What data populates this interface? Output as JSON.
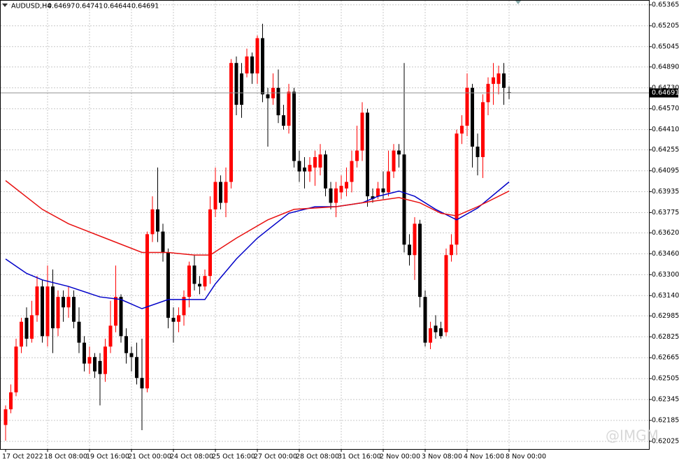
{
  "chart_data": {
    "type": "candlestick",
    "title": "AUDUSD,H4",
    "x": [
      "17 Oct 2022",
      null,
      null,
      null,
      null,
      null,
      null,
      null,
      "18 Oct 08:00",
      null,
      null,
      null,
      null,
      null,
      null,
      null,
      "19 Oct 16:00",
      null,
      null,
      null,
      null,
      null,
      null,
      null,
      "21 Oct 00:00",
      null,
      null,
      null,
      null,
      null,
      null,
      null,
      "24 Oct 08:00",
      null,
      null,
      null,
      null,
      null,
      null,
      null,
      "25 Oct 16:00",
      null,
      null,
      null,
      null,
      null,
      null,
      null,
      "27 Oct 00:00",
      null,
      null,
      null,
      null,
      null,
      null,
      null,
      "28 Oct 08:00",
      null,
      null,
      null,
      null,
      null,
      null,
      null,
      "31 Oct 16:00",
      null,
      null,
      null,
      null,
      null,
      null,
      null,
      "2 Nov 00:00",
      null,
      null,
      null,
      null,
      null,
      null,
      null,
      "3 Nov 08:00",
      null,
      null,
      null,
      null,
      null,
      null,
      null,
      "4 Nov 16:00",
      null,
      null,
      null,
      null,
      null,
      null,
      null,
      "8 Nov 00:00"
    ],
    "open": [
      0.6215,
      0.6227,
      0.624,
      0.6275,
      0.6297,
      0.6281,
      0.6299,
      0.6321,
      0.6283,
      0.6321,
      0.6289,
      0.6313,
      0.6305,
      0.6313,
      0.6294,
      0.6278,
      0.6262,
      0.6267,
      0.6264,
      0.6254,
      0.6275,
      0.6291,
      0.6313,
      0.6283,
      0.627,
      0.6267,
      0.6251,
      0.6243,
      0.6361,
      0.638,
      0.6363,
      0.6347,
      0.6297,
      0.6294,
      0.6299,
      0.6313,
      0.6337,
      0.6323,
      0.6321,
      0.6329,
      0.638,
      0.6401,
      0.6385,
      0.6401,
      0.6492,
      0.6484,
      0.6484,
      0.6497,
      0.6484,
      0.6511,
      0.6468,
      0.6465,
      0.6473,
      0.6452,
      0.6444,
      0.647,
      0.6417,
      0.6412,
      0.6409,
      0.6412,
      0.6412,
      0.6422,
      0.6396,
      0.6385,
      0.6393,
      0.6396,
      0.6401,
      0.6417,
      0.6425,
      0.6454,
      0.639,
      0.639,
      0.6396,
      0.6393,
      0.6409,
      0.6425,
      0.6422,
      0.6353,
      0.6345,
      0.6369,
      0.6313,
      0.6278,
      0.6291,
      0.6289,
      0.6286,
      0.6345,
      0.6353,
      0.6438,
      0.6444,
      0.6473,
      0.6428,
      0.642,
      0.6462,
      0.6476,
      0.6476,
      0.6484,
      0.64697
    ],
    "high": [
      0.623,
      0.6246,
      0.6281,
      0.6297,
      0.6305,
      0.631,
      0.6329,
      0.6326,
      0.6337,
      0.6334,
      0.6318,
      0.6318,
      0.6321,
      0.6318,
      0.6305,
      0.6283,
      0.6275,
      0.627,
      0.627,
      0.6281,
      0.631,
      0.6337,
      0.6315,
      0.6289,
      0.6275,
      0.6278,
      0.6281,
      0.6363,
      0.639,
      0.6412,
      0.6369,
      0.635,
      0.6305,
      0.6305,
      0.6318,
      0.634,
      0.6345,
      0.6329,
      0.6334,
      0.639,
      0.6412,
      0.6406,
      0.6412,
      0.6495,
      0.6497,
      0.6492,
      0.6503,
      0.65,
      0.6513,
      0.6522,
      0.6473,
      0.6484,
      0.6487,
      0.646,
      0.6476,
      0.6473,
      0.6425,
      0.642,
      0.642,
      0.6425,
      0.643,
      0.6425,
      0.6401,
      0.6401,
      0.6406,
      0.6412,
      0.6425,
      0.6444,
      0.6462,
      0.6457,
      0.6396,
      0.6401,
      0.6409,
      0.6425,
      0.643,
      0.643,
      0.6492,
      0.6361,
      0.6374,
      0.6372,
      0.6318,
      0.6294,
      0.6299,
      0.6294,
      0.635,
      0.6361,
      0.6441,
      0.6452,
      0.6484,
      0.6476,
      0.6438,
      0.6468,
      0.6481,
      0.6492,
      0.649,
      0.6492,
      0.64741
    ],
    "low": [
      0.6203,
      0.6224,
      0.6237,
      0.627,
      0.6275,
      0.6278,
      0.6294,
      0.6278,
      0.6275,
      0.627,
      0.6283,
      0.6294,
      0.6297,
      0.6289,
      0.627,
      0.6256,
      0.6254,
      0.6251,
      0.623,
      0.6248,
      0.627,
      0.6286,
      0.6278,
      0.6262,
      0.6256,
      0.6246,
      0.6211,
      0.624,
      0.6355,
      0.6355,
      0.634,
      0.6289,
      0.6278,
      0.6286,
      0.6291,
      0.6305,
      0.6318,
      0.6315,
      0.6318,
      0.6323,
      0.6374,
      0.638,
      0.6374,
      0.6396,
      0.6452,
      0.645,
      0.6481,
      0.6476,
      0.6476,
      0.6462,
      0.6428,
      0.646,
      0.6446,
      0.6441,
      0.6438,
      0.6412,
      0.6401,
      0.6396,
      0.6401,
      0.6398,
      0.6406,
      0.639,
      0.638,
      0.6374,
      0.6388,
      0.639,
      0.6393,
      0.6412,
      0.6417,
      0.6382,
      0.6385,
      0.6388,
      0.6388,
      0.639,
      0.6404,
      0.6412,
      0.6347,
      0.6337,
      0.6326,
      0.6305,
      0.6275,
      0.6273,
      0.6281,
      0.6281,
      0.6283,
      0.634,
      0.6345,
      0.643,
      0.6436,
      0.6412,
      0.6406,
      0.6404,
      0.6452,
      0.646,
      0.6468,
      0.646,
      0.64644
    ],
    "close": [
      0.6227,
      0.624,
      0.6275,
      0.6294,
      0.6281,
      0.6299,
      0.6321,
      0.6283,
      0.6321,
      0.6289,
      0.6313,
      0.6305,
      0.6313,
      0.6294,
      0.6278,
      0.6262,
      0.6267,
      0.6256,
      0.6254,
      0.6275,
      0.6291,
      0.6313,
      0.6283,
      0.627,
      0.6267,
      0.6251,
      0.6243,
      0.6361,
      0.638,
      0.6363,
      0.6347,
      0.6297,
      0.6294,
      0.6299,
      0.6313,
      0.6337,
      0.6323,
      0.6321,
      0.6329,
      0.638,
      0.6401,
      0.6385,
      0.6401,
      0.6492,
      0.646,
      0.646,
      0.6497,
      0.6484,
      0.6511,
      0.6468,
      0.6465,
      0.6473,
      0.6452,
      0.6444,
      0.647,
      0.6417,
      0.6409,
      0.6409,
      0.6414,
      0.642,
      0.6422,
      0.6396,
      0.6385,
      0.6396,
      0.6398,
      0.6401,
      0.6417,
      0.6425,
      0.6454,
      0.639,
      0.6388,
      0.6396,
      0.6393,
      0.6409,
      0.6425,
      0.6422,
      0.6353,
      0.6345,
      0.6369,
      0.6313,
      0.6278,
      0.6289,
      0.6286,
      0.6283,
      0.6345,
      0.6353,
      0.6438,
      0.6444,
      0.6473,
      0.6428,
      0.642,
      0.6462,
      0.6476,
      0.6481,
      0.6484,
      0.6473,
      0.64691
    ],
    "up_color": "#ff0000",
    "down_color": "#000000",
    "overlays": [
      {
        "color": "#0000c8",
        "x": [
          0,
          4,
          7,
          12,
          18,
          22,
          26,
          31,
          38,
          40,
          44,
          48,
          54,
          59,
          63,
          68,
          71,
          75,
          78,
          82,
          86,
          90,
          96
        ],
        "values": [
          0.6342,
          0.6331,
          0.6326,
          0.6321,
          0.6313,
          0.6311,
          0.6304,
          0.6311,
          0.6311,
          0.6323,
          0.6342,
          0.6358,
          0.6377,
          0.6382,
          0.6382,
          0.6385,
          0.639,
          0.6394,
          0.639,
          0.638,
          0.6372,
          0.6381,
          0.6401
        ]
      },
      {
        "color": "#e81010",
        "x": [
          0,
          7,
          12,
          19,
          26,
          31,
          36,
          39,
          44,
          50,
          55,
          63,
          68,
          75,
          79,
          83,
          86,
          90,
          96
        ],
        "values": [
          0.6402,
          0.638,
          0.6369,
          0.6358,
          0.6347,
          0.6347,
          0.6345,
          0.6345,
          0.6358,
          0.6372,
          0.638,
          0.6382,
          0.6385,
          0.6389,
          0.6385,
          0.6377,
          0.6375,
          0.6382,
          0.6394
        ]
      }
    ],
    "ylim": [
      0.61966,
      0.65402
    ],
    "yticks": [
      0.65365,
      0.65205,
      0.65045,
      {
        "value": 0.6489,
        "label": "0.64890"
      },
      {
        "value": 0.6473,
        "label": "0.64730"
      },
      {
        "value": 0.6457,
        "label": "0.64570"
      },
      {
        "value": 0.6441,
        "label": "0.64410"
      },
      0.64255,
      0.64095,
      0.63935,
      0.63775,
      {
        "value": 0.6362,
        "label": "0.63620"
      },
      {
        "value": 0.6346,
        "label": "0.63460"
      },
      {
        "value": 0.633,
        "label": "0.63300"
      },
      {
        "value": 0.6314,
        "label": "0.63140"
      },
      0.62985,
      0.62825,
      0.62665,
      0.62505,
      0.62345,
      0.62185,
      0.62025
    ],
    "grid": true,
    "watermark": "@IMGM"
  }
}
